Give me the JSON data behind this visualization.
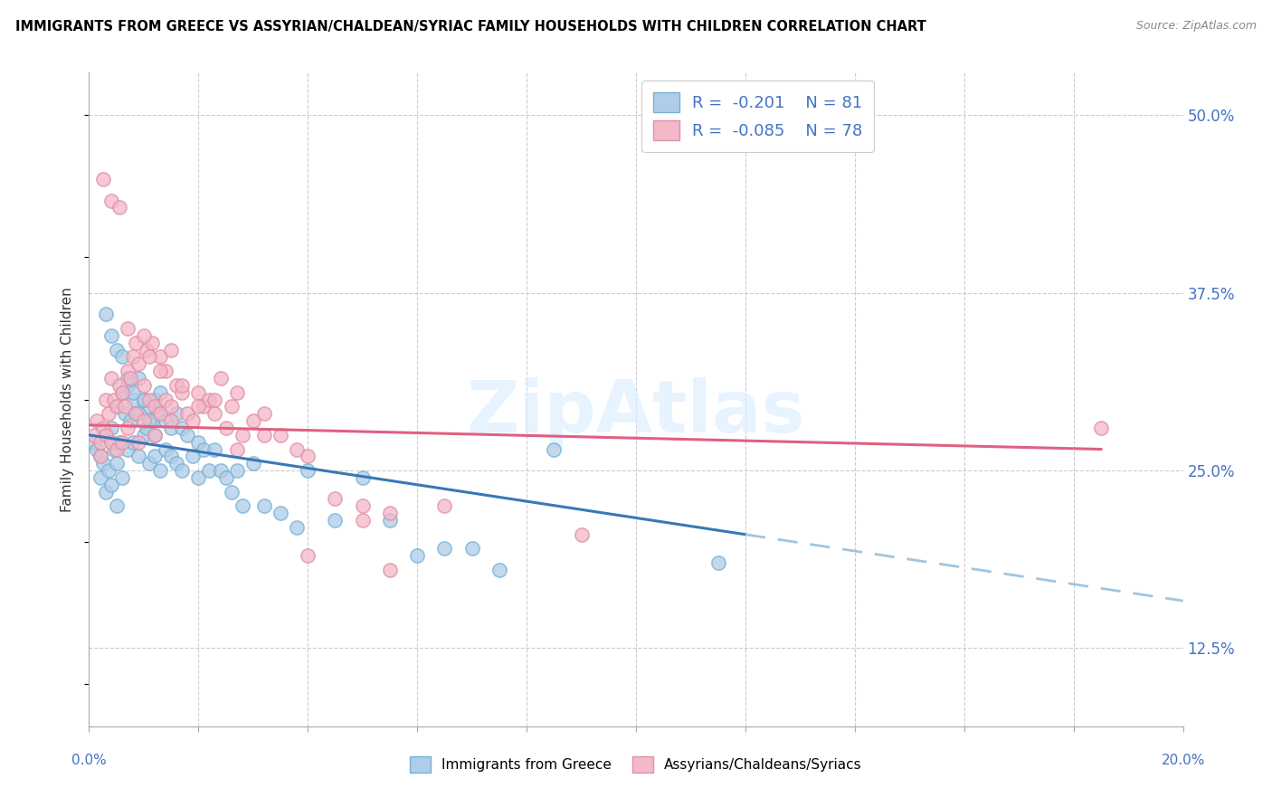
{
  "title": "IMMIGRANTS FROM GREECE VS ASSYRIAN/CHALDEAN/SYRIAC FAMILY HOUSEHOLDS WITH CHILDREN CORRELATION CHART",
  "source": "Source: ZipAtlas.com",
  "ylabel": "Family Households with Children",
  "right_yticks": [
    12.5,
    25.0,
    37.5,
    50.0
  ],
  "right_ytick_labels": [
    "12.5%",
    "25.0%",
    "37.5%",
    "50.0%"
  ],
  "xmin": 0.0,
  "xmax": 20.0,
  "ymin": 7.0,
  "ymax": 53.0,
  "blue_fill": "#aecde8",
  "blue_edge": "#7ab0d4",
  "blue_line": "#3878b8",
  "blue_dash": "#9fc5e0",
  "pink_fill": "#f4b8c8",
  "pink_edge": "#e090a8",
  "pink_line": "#e06080",
  "watermark_color": "#ddeeff",
  "legend_r1": "-0.201",
  "legend_n1": "81",
  "legend_r2": "-0.085",
  "legend_n2": "78",
  "blue_line_x0": 0.0,
  "blue_line_y0": 27.5,
  "blue_line_x1": 12.0,
  "blue_line_y1": 20.5,
  "pink_line_x0": 0.0,
  "pink_line_y0": 28.2,
  "pink_line_x1": 18.5,
  "pink_line_y1": 26.5,
  "blue_scatter_x": [
    0.1,
    0.15,
    0.2,
    0.2,
    0.25,
    0.3,
    0.3,
    0.35,
    0.4,
    0.4,
    0.45,
    0.5,
    0.5,
    0.5,
    0.55,
    0.6,
    0.6,
    0.65,
    0.7,
    0.7,
    0.75,
    0.8,
    0.8,
    0.85,
    0.9,
    0.9,
    1.0,
    1.0,
    1.05,
    1.1,
    1.1,
    1.15,
    1.2,
    1.2,
    1.25,
    1.3,
    1.3,
    1.4,
    1.4,
    1.5,
    1.5,
    1.6,
    1.6,
    1.7,
    1.7,
    1.8,
    1.9,
    2.0,
    2.0,
    2.1,
    2.2,
    2.3,
    2.4,
    2.5,
    2.6,
    2.7,
    2.8,
    3.0,
    3.2,
    3.5,
    3.8,
    4.0,
    4.5,
    5.0,
    5.5,
    6.0,
    6.5,
    7.0,
    7.5,
    8.5,
    11.5,
    0.3,
    0.4,
    0.5,
    0.6,
    0.7,
    0.8,
    0.9,
    1.0,
    1.1,
    1.2
  ],
  "blue_scatter_y": [
    27.0,
    26.5,
    26.0,
    24.5,
    25.5,
    27.5,
    23.5,
    25.0,
    28.0,
    24.0,
    26.5,
    29.5,
    25.5,
    22.5,
    27.0,
    30.5,
    24.5,
    29.0,
    31.0,
    26.5,
    28.5,
    30.0,
    27.0,
    29.0,
    31.5,
    26.0,
    30.0,
    27.5,
    28.0,
    29.5,
    25.5,
    28.5,
    30.0,
    26.0,
    29.0,
    30.5,
    25.0,
    28.5,
    26.5,
    28.0,
    26.0,
    29.0,
    25.5,
    28.0,
    25.0,
    27.5,
    26.0,
    27.0,
    24.5,
    26.5,
    25.0,
    26.5,
    25.0,
    24.5,
    23.5,
    25.0,
    22.5,
    25.5,
    22.5,
    22.0,
    21.0,
    25.0,
    21.5,
    24.5,
    21.5,
    19.0,
    19.5,
    19.5,
    18.0,
    26.5,
    18.5,
    36.0,
    34.5,
    33.5,
    33.0,
    31.5,
    30.5,
    29.0,
    30.0,
    28.5,
    27.5
  ],
  "pink_scatter_x": [
    0.1,
    0.15,
    0.2,
    0.2,
    0.25,
    0.3,
    0.3,
    0.35,
    0.4,
    0.4,
    0.45,
    0.5,
    0.5,
    0.55,
    0.6,
    0.6,
    0.65,
    0.7,
    0.7,
    0.75,
    0.8,
    0.85,
    0.9,
    0.9,
    1.0,
    1.0,
    1.05,
    1.1,
    1.15,
    1.2,
    1.2,
    1.3,
    1.3,
    1.4,
    1.4,
    1.5,
    1.5,
    1.6,
    1.7,
    1.8,
    1.9,
    2.0,
    2.1,
    2.2,
    2.3,
    2.4,
    2.5,
    2.6,
    2.7,
    2.8,
    3.0,
    3.2,
    3.5,
    3.8,
    4.0,
    4.5,
    5.0,
    5.5,
    6.5,
    9.0,
    18.5,
    0.25,
    0.4,
    0.55,
    0.7,
    0.85,
    1.0,
    1.1,
    1.3,
    1.5,
    1.7,
    2.0,
    2.3,
    2.7,
    3.2,
    4.0,
    5.5,
    5.0
  ],
  "pink_scatter_y": [
    27.5,
    28.5,
    27.0,
    26.0,
    28.0,
    30.0,
    27.5,
    29.0,
    31.5,
    27.0,
    30.0,
    29.5,
    26.5,
    31.0,
    30.5,
    27.0,
    29.5,
    32.0,
    28.0,
    31.5,
    33.0,
    29.0,
    32.5,
    27.0,
    31.0,
    28.5,
    33.5,
    30.0,
    34.0,
    29.5,
    27.5,
    33.0,
    29.0,
    32.0,
    30.0,
    29.5,
    28.5,
    31.0,
    30.5,
    29.0,
    28.5,
    30.5,
    29.5,
    30.0,
    29.0,
    31.5,
    28.0,
    29.5,
    30.5,
    27.5,
    28.5,
    29.0,
    27.5,
    26.5,
    26.0,
    23.0,
    21.5,
    22.0,
    22.5,
    20.5,
    28.0,
    45.5,
    44.0,
    43.5,
    35.0,
    34.0,
    34.5,
    33.0,
    32.0,
    33.5,
    31.0,
    29.5,
    30.0,
    26.5,
    27.5,
    19.0,
    18.0,
    22.5
  ]
}
